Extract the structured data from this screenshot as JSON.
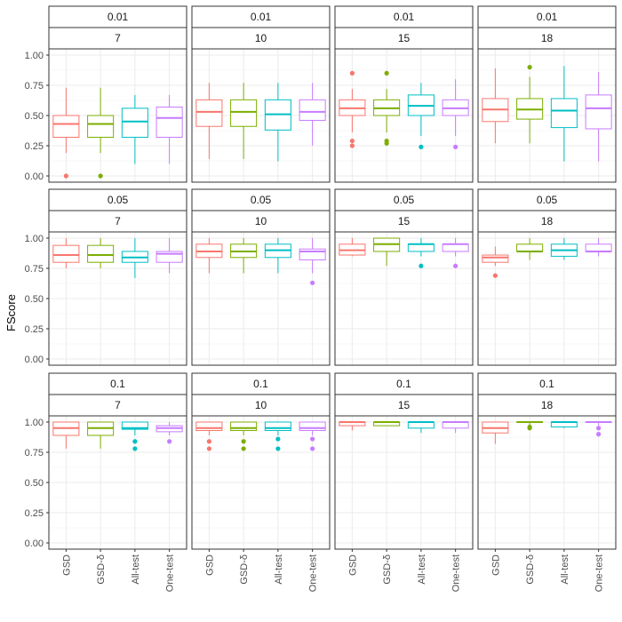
{
  "chart_data": {
    "type": "boxplot",
    "ylabel": "FScore",
    "xlabel": "",
    "ylim": [
      0,
      1
    ],
    "yticks": [
      "0.00",
      "0.25",
      "0.50",
      "0.75",
      "1.00"
    ],
    "grid": true,
    "categories": [
      "GSD",
      "GSD-δ",
      "All-test",
      "One-test"
    ],
    "colors": {
      "GSD": "#F8766D",
      "GSD-δ": "#7CAE00",
      "All-test": "#00BFC4",
      "One-test": "#C77CFF"
    },
    "panels": [
      {
        "row_label": "0.01",
        "col_label": "7",
        "boxes": [
          {
            "category": "GSD",
            "whisker_low": 0.19,
            "q1": 0.32,
            "median": 0.43,
            "q3": 0.5,
            "whisker_high": 0.73,
            "outliers": [
              0.0
            ]
          },
          {
            "category": "GSD-δ",
            "whisker_low": 0.19,
            "q1": 0.32,
            "median": 0.43,
            "q3": 0.5,
            "whisker_high": 0.73,
            "outliers": [
              0.0
            ]
          },
          {
            "category": "All-test",
            "whisker_low": 0.1,
            "q1": 0.32,
            "median": 0.45,
            "q3": 0.56,
            "whisker_high": 0.67,
            "outliers": []
          },
          {
            "category": "One-test",
            "whisker_low": 0.1,
            "q1": 0.32,
            "median": 0.48,
            "q3": 0.57,
            "whisker_high": 0.67,
            "outliers": []
          }
        ]
      },
      {
        "row_label": "0.01",
        "col_label": "10",
        "boxes": [
          {
            "category": "GSD",
            "whisker_low": 0.14,
            "q1": 0.41,
            "median": 0.53,
            "q3": 0.63,
            "whisker_high": 0.77,
            "outliers": []
          },
          {
            "category": "GSD-δ",
            "whisker_low": 0.14,
            "q1": 0.41,
            "median": 0.53,
            "q3": 0.63,
            "whisker_high": 0.77,
            "outliers": []
          },
          {
            "category": "All-test",
            "whisker_low": 0.12,
            "q1": 0.38,
            "median": 0.51,
            "q3": 0.63,
            "whisker_high": 0.77,
            "outliers": []
          },
          {
            "category": "One-test",
            "whisker_low": 0.25,
            "q1": 0.46,
            "median": 0.53,
            "q3": 0.63,
            "whisker_high": 0.77,
            "outliers": []
          }
        ]
      },
      {
        "row_label": "0.01",
        "col_label": "15",
        "boxes": [
          {
            "category": "GSD",
            "whisker_low": 0.36,
            "q1": 0.5,
            "median": 0.56,
            "q3": 0.63,
            "whisker_high": 0.72,
            "outliers": [
              0.25,
              0.29,
              0.85
            ]
          },
          {
            "category": "GSD-δ",
            "whisker_low": 0.36,
            "q1": 0.5,
            "median": 0.56,
            "q3": 0.63,
            "whisker_high": 0.72,
            "outliers": [
              0.27,
              0.29,
              0.85
            ]
          },
          {
            "category": "All-test",
            "whisker_low": 0.33,
            "q1": 0.5,
            "median": 0.58,
            "q3": 0.67,
            "whisker_high": 0.77,
            "outliers": [
              0.24
            ]
          },
          {
            "category": "One-test",
            "whisker_low": 0.33,
            "q1": 0.5,
            "median": 0.56,
            "q3": 0.63,
            "whisker_high": 0.8,
            "outliers": [
              0.24
            ]
          }
        ]
      },
      {
        "row_label": "0.01",
        "col_label": "18",
        "boxes": [
          {
            "category": "GSD",
            "whisker_low": 0.27,
            "q1": 0.45,
            "median": 0.55,
            "q3": 0.64,
            "whisker_high": 0.89,
            "outliers": []
          },
          {
            "category": "GSD-δ",
            "whisker_low": 0.27,
            "q1": 0.47,
            "median": 0.55,
            "q3": 0.64,
            "whisker_high": 0.82,
            "outliers": [
              0.9
            ]
          },
          {
            "category": "All-test",
            "whisker_low": 0.12,
            "q1": 0.4,
            "median": 0.54,
            "q3": 0.64,
            "whisker_high": 0.91,
            "outliers": []
          },
          {
            "category": "One-test",
            "whisker_low": 0.12,
            "q1": 0.39,
            "median": 0.56,
            "q3": 0.67,
            "whisker_high": 0.86,
            "outliers": []
          }
        ]
      },
      {
        "row_label": "0.05",
        "col_label": "7",
        "boxes": [
          {
            "category": "GSD",
            "whisker_low": 0.75,
            "q1": 0.8,
            "median": 0.86,
            "q3": 0.94,
            "whisker_high": 1.0,
            "outliers": []
          },
          {
            "category": "GSD-δ",
            "whisker_low": 0.75,
            "q1": 0.8,
            "median": 0.86,
            "q3": 0.94,
            "whisker_high": 1.0,
            "outliers": []
          },
          {
            "category": "All-test",
            "whisker_low": 0.67,
            "q1": 0.8,
            "median": 0.84,
            "q3": 0.89,
            "whisker_high": 1.0,
            "outliers": []
          },
          {
            "category": "One-test",
            "whisker_low": 0.71,
            "q1": 0.8,
            "median": 0.87,
            "q3": 0.89,
            "whisker_high": 1.0,
            "outliers": []
          }
        ]
      },
      {
        "row_label": "0.05",
        "col_label": "10",
        "boxes": [
          {
            "category": "GSD",
            "whisker_low": 0.71,
            "q1": 0.84,
            "median": 0.89,
            "q3": 0.95,
            "whisker_high": 1.0,
            "outliers": []
          },
          {
            "category": "GSD-δ",
            "whisker_low": 0.71,
            "q1": 0.84,
            "median": 0.89,
            "q3": 0.95,
            "whisker_high": 1.0,
            "outliers": []
          },
          {
            "category": "All-test",
            "whisker_low": 0.71,
            "q1": 0.84,
            "median": 0.9,
            "q3": 0.95,
            "whisker_high": 1.0,
            "outliers": []
          },
          {
            "category": "One-test",
            "whisker_low": 0.71,
            "q1": 0.82,
            "median": 0.89,
            "q3": 0.91,
            "whisker_high": 1.0,
            "outliers": [
              0.63
            ]
          }
        ]
      },
      {
        "row_label": "0.05",
        "col_label": "15",
        "boxes": [
          {
            "category": "GSD",
            "whisker_low": 0.85,
            "q1": 0.86,
            "median": 0.9,
            "q3": 0.95,
            "whisker_high": 1.0,
            "outliers": []
          },
          {
            "category": "GSD-δ",
            "whisker_low": 0.77,
            "q1": 0.89,
            "median": 0.95,
            "q3": 1.0,
            "whisker_high": 1.0,
            "outliers": []
          },
          {
            "category": "All-test",
            "whisker_low": 0.85,
            "q1": 0.89,
            "median": 0.95,
            "q3": 0.95,
            "whisker_high": 1.0,
            "outliers": [
              0.77
            ]
          },
          {
            "category": "One-test",
            "whisker_low": 0.85,
            "q1": 0.89,
            "median": 0.95,
            "q3": 0.95,
            "whisker_high": 1.0,
            "outliers": [
              0.77
            ]
          }
        ]
      },
      {
        "row_label": "0.05",
        "col_label": "18",
        "boxes": [
          {
            "category": "GSD",
            "whisker_low": 0.77,
            "q1": 0.8,
            "median": 0.84,
            "q3": 0.86,
            "whisker_high": 0.93,
            "outliers": [
              0.69
            ]
          },
          {
            "category": "GSD-δ",
            "whisker_low": 0.82,
            "q1": 0.89,
            "median": 0.89,
            "q3": 0.95,
            "whisker_high": 1.0,
            "outliers": []
          },
          {
            "category": "All-test",
            "whisker_low": 0.82,
            "q1": 0.85,
            "median": 0.9,
            "q3": 0.95,
            "whisker_high": 1.0,
            "outliers": []
          },
          {
            "category": "One-test",
            "whisker_low": 0.85,
            "q1": 0.89,
            "median": 0.89,
            "q3": 0.95,
            "whisker_high": 1.0,
            "outliers": []
          }
        ]
      },
      {
        "row_label": "0.1",
        "col_label": "7",
        "boxes": [
          {
            "category": "GSD",
            "whisker_low": 0.78,
            "q1": 0.89,
            "median": 0.95,
            "q3": 1.0,
            "whisker_high": 1.0,
            "outliers": []
          },
          {
            "category": "GSD-δ",
            "whisker_low": 0.78,
            "q1": 0.89,
            "median": 0.95,
            "q3": 1.0,
            "whisker_high": 1.0,
            "outliers": []
          },
          {
            "category": "All-test",
            "whisker_low": 0.89,
            "q1": 0.94,
            "median": 0.95,
            "q3": 1.0,
            "whisker_high": 1.0,
            "outliers": [
              0.78,
              0.84
            ]
          },
          {
            "category": "One-test",
            "whisker_low": 0.89,
            "q1": 0.92,
            "median": 0.95,
            "q3": 0.97,
            "whisker_high": 1.0,
            "outliers": [
              0.84
            ]
          }
        ]
      },
      {
        "row_label": "0.1",
        "col_label": "10",
        "boxes": [
          {
            "category": "GSD",
            "whisker_low": 0.89,
            "q1": 0.93,
            "median": 0.95,
            "q3": 1.0,
            "whisker_high": 1.0,
            "outliers": [
              0.78,
              0.84
            ]
          },
          {
            "category": "GSD-δ",
            "whisker_low": 0.89,
            "q1": 0.93,
            "median": 0.95,
            "q3": 1.0,
            "whisker_high": 1.0,
            "outliers": [
              0.78,
              0.84
            ]
          },
          {
            "category": "All-test",
            "whisker_low": 0.89,
            "q1": 0.93,
            "median": 0.95,
            "q3": 1.0,
            "whisker_high": 1.0,
            "outliers": [
              0.78,
              0.86
            ]
          },
          {
            "category": "One-test",
            "whisker_low": 0.89,
            "q1": 0.93,
            "median": 0.95,
            "q3": 1.0,
            "whisker_high": 1.0,
            "outliers": [
              0.78,
              0.86
            ]
          }
        ]
      },
      {
        "row_label": "0.1",
        "col_label": "15",
        "boxes": [
          {
            "category": "GSD",
            "whisker_low": 0.93,
            "q1": 0.97,
            "median": 1.0,
            "q3": 1.0,
            "whisker_high": 1.0,
            "outliers": []
          },
          {
            "category": "GSD-δ",
            "whisker_low": 0.97,
            "q1": 0.97,
            "median": 1.0,
            "q3": 1.0,
            "whisker_high": 1.0,
            "outliers": []
          },
          {
            "category": "All-test",
            "whisker_low": 0.91,
            "q1": 0.95,
            "median": 1.0,
            "q3": 1.0,
            "whisker_high": 1.0,
            "outliers": []
          },
          {
            "category": "One-test",
            "whisker_low": 0.91,
            "q1": 0.95,
            "median": 1.0,
            "q3": 1.0,
            "whisker_high": 1.0,
            "outliers": []
          }
        ]
      },
      {
        "row_label": "0.1",
        "col_label": "18",
        "boxes": [
          {
            "category": "GSD",
            "whisker_low": 0.82,
            "q1": 0.91,
            "median": 0.95,
            "q3": 1.0,
            "whisker_high": 1.0,
            "outliers": []
          },
          {
            "category": "GSD-δ",
            "whisker_low": 0.97,
            "q1": 1.0,
            "median": 1.0,
            "q3": 1.0,
            "whisker_high": 1.0,
            "outliers": [
              0.95,
              0.96
            ]
          },
          {
            "category": "All-test",
            "whisker_low": 0.95,
            "q1": 0.96,
            "median": 1.0,
            "q3": 1.0,
            "whisker_high": 1.0,
            "outliers": []
          },
          {
            "category": "One-test",
            "whisker_low": 0.97,
            "q1": 1.0,
            "median": 1.0,
            "q3": 1.0,
            "whisker_high": 1.0,
            "outliers": [
              0.9,
              0.95
            ]
          }
        ]
      }
    ]
  }
}
